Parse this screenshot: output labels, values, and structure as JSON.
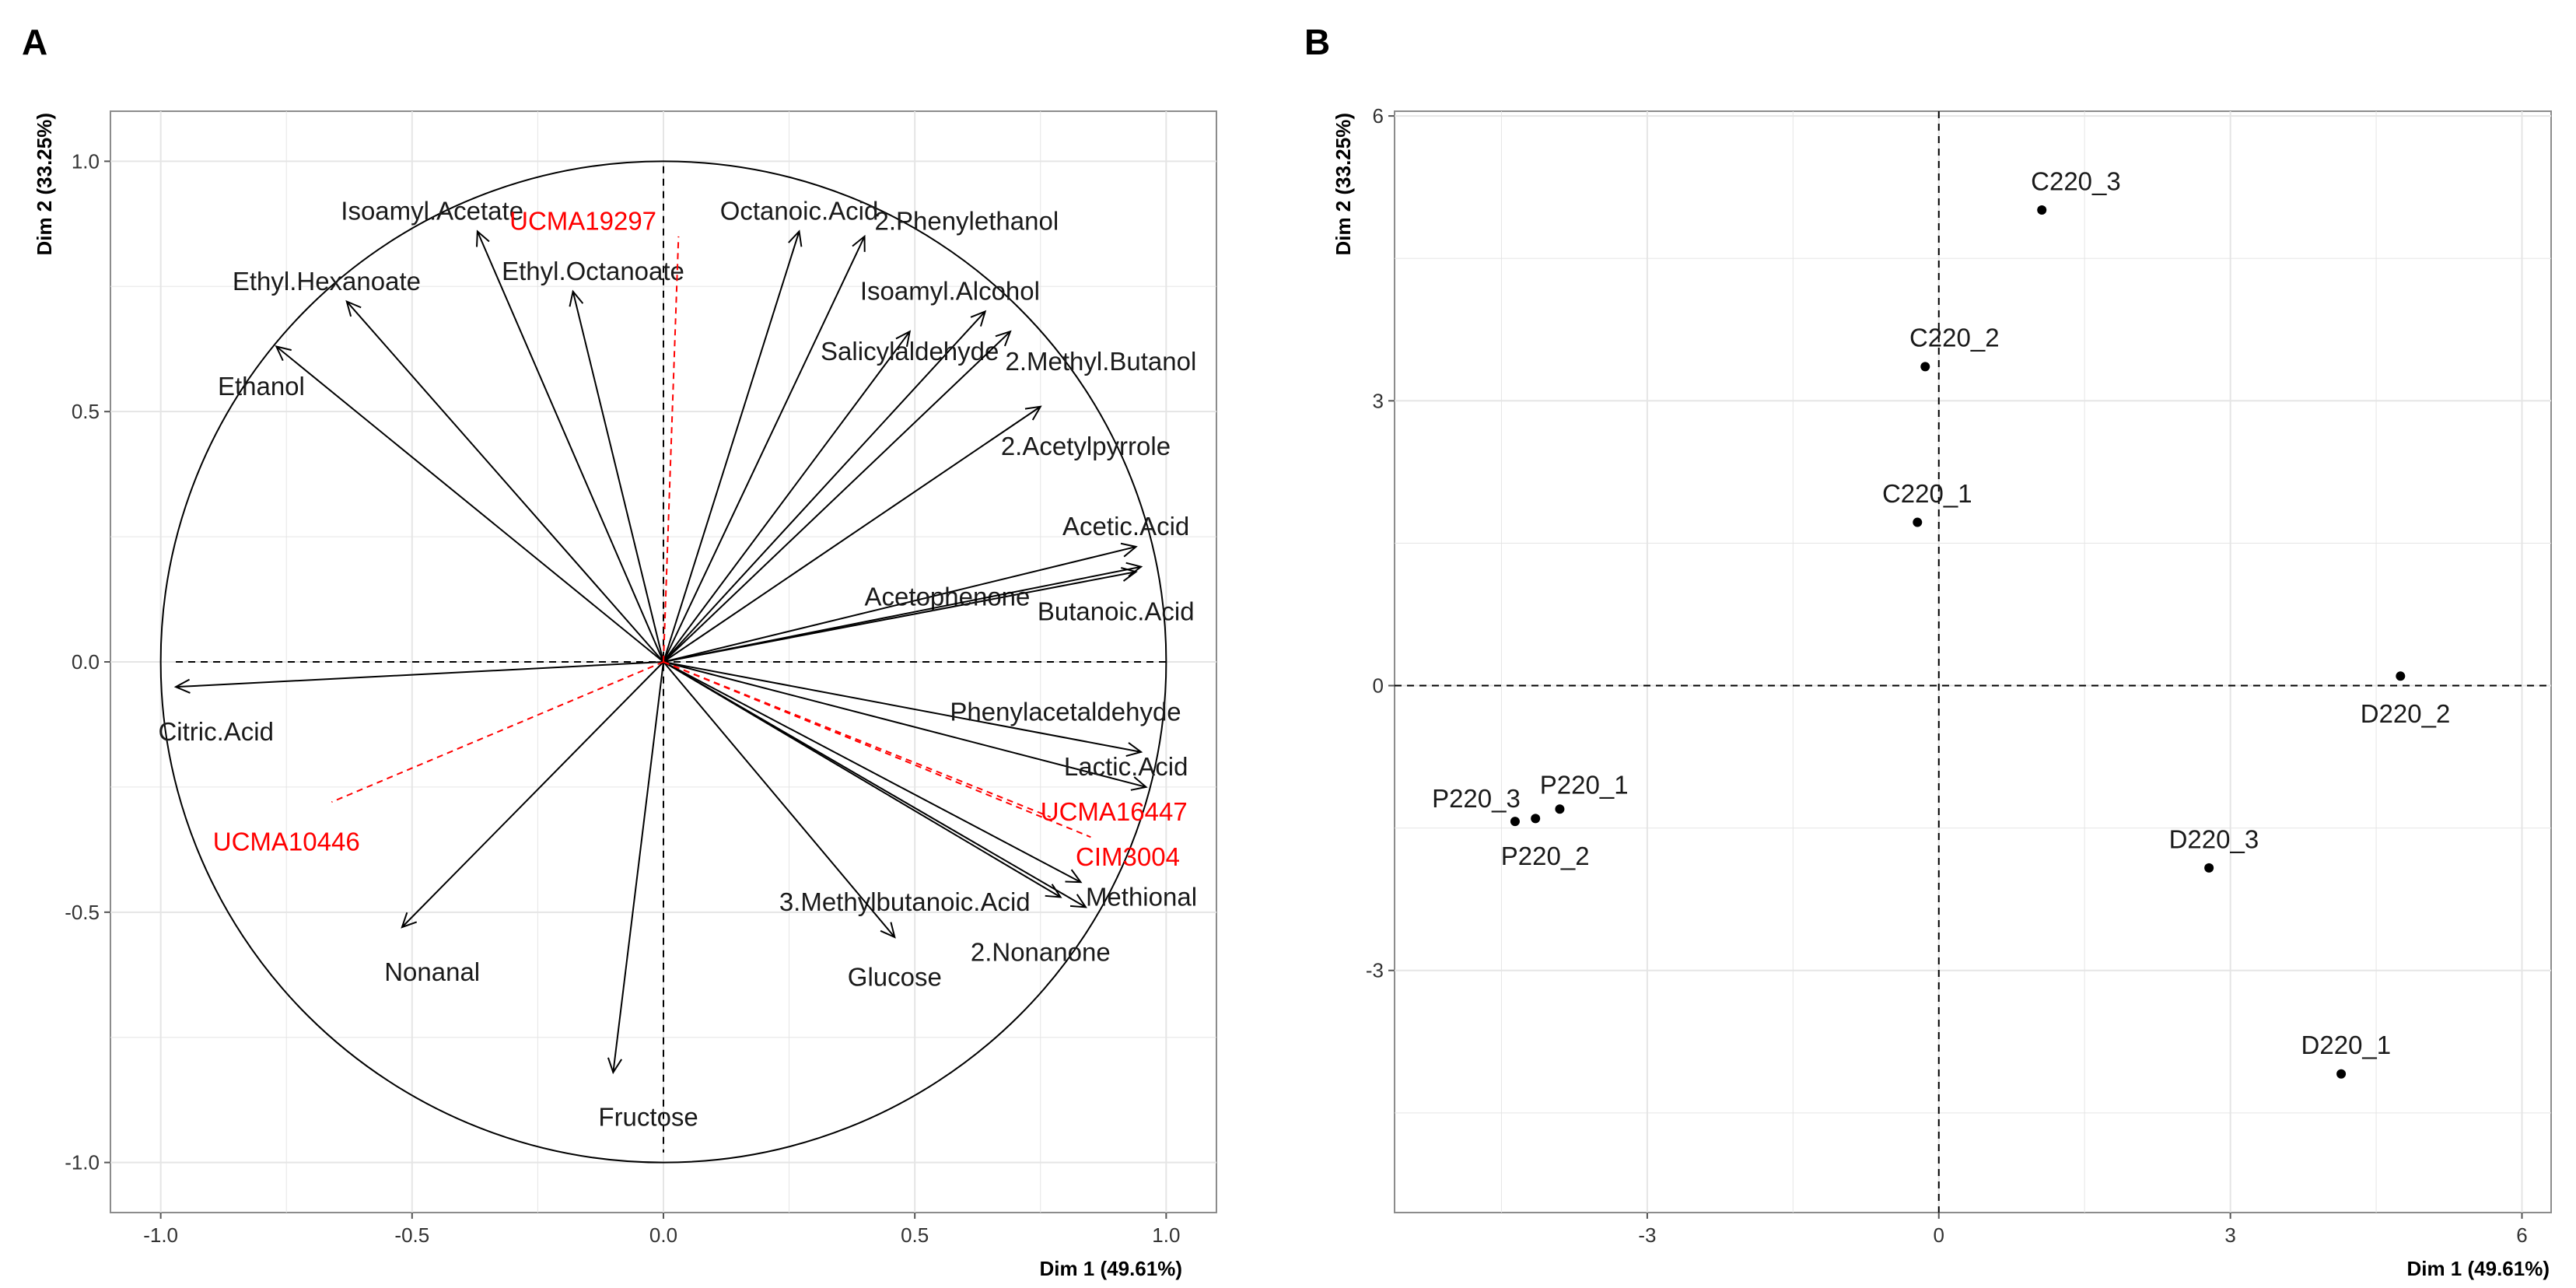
{
  "panels": {
    "a": {
      "letter": "A"
    },
    "b": {
      "letter": "B"
    }
  },
  "colors": {
    "active": "#000000",
    "supplementary": "#ff0000",
    "grid": "#e5e5e5",
    "panel_border": "#8c8c8c"
  },
  "chart_data": [
    {
      "type": "scatter",
      "subtype": "pca-variables-correlation-circle",
      "title": "",
      "xlabel": "Dim 1 (49.61%)",
      "ylabel": "Dim 2 (33.25%)",
      "xlim": [
        -1.1,
        1.1
      ],
      "ylim": [
        -1.1,
        1.1
      ],
      "xticks": [
        -1.0,
        -0.5,
        0.0,
        0.5,
        1.0
      ],
      "yticks": [
        -1.0,
        -0.5,
        0.0,
        0.5,
        1.0
      ],
      "xtick_labels": [
        "-1.0",
        "-0.5",
        "0.0",
        "0.5",
        "1.0"
      ],
      "ytick_labels": [
        "-1.0",
        "-0.5",
        "0.0",
        "0.5",
        "1.0"
      ],
      "grid": true,
      "unit_circle": true,
      "variables": [
        {
          "name": "Isoamyl.Acetate",
          "x": -0.37,
          "y": 0.86,
          "group": "active"
        },
        {
          "name": "Octanoic.Acid",
          "x": 0.27,
          "y": 0.86,
          "group": "active"
        },
        {
          "name": "2.Phenylethanol",
          "x": 0.4,
          "y": 0.85,
          "group": "active"
        },
        {
          "name": "Ethyl.Hexanoate",
          "x": -0.63,
          "y": 0.72,
          "group": "active"
        },
        {
          "name": "Ethyl.Octanoate",
          "x": -0.18,
          "y": 0.74,
          "group": "active"
        },
        {
          "name": "Isoamyl.Alcohol",
          "x": 0.64,
          "y": 0.7,
          "group": "active"
        },
        {
          "name": "Salicylaldehyde",
          "x": 0.49,
          "y": 0.66,
          "group": "active"
        },
        {
          "name": "2.Methyl.Butanol",
          "x": 0.69,
          "y": 0.66,
          "group": "active"
        },
        {
          "name": "Ethanol",
          "x": -0.77,
          "y": 0.63,
          "group": "active"
        },
        {
          "name": "2.Acetylpyrrole",
          "x": 0.75,
          "y": 0.51,
          "group": "active"
        },
        {
          "name": "Acetic.Acid",
          "x": 0.94,
          "y": 0.23,
          "group": "active"
        },
        {
          "name": "Acetophenone",
          "x": 0.94,
          "y": 0.18,
          "group": "active"
        },
        {
          "name": "Butanoic.Acid",
          "x": 0.95,
          "y": 0.19,
          "group": "active"
        },
        {
          "name": "Citric.Acid",
          "x": -0.97,
          "y": -0.05,
          "group": "active"
        },
        {
          "name": "Phenylacetaldehyde",
          "x": 0.95,
          "y": -0.18,
          "group": "active"
        },
        {
          "name": "Lactic.Acid",
          "x": 0.96,
          "y": -0.25,
          "group": "active"
        },
        {
          "name": "3.Methylbutanoic.Acid",
          "x": 0.79,
          "y": -0.47,
          "group": "active"
        },
        {
          "name": "Methional",
          "x": 0.83,
          "y": -0.44,
          "group": "active"
        },
        {
          "name": "2.Nonanone",
          "x": 0.84,
          "y": -0.49,
          "group": "active"
        },
        {
          "name": "Glucose",
          "x": 0.46,
          "y": -0.55,
          "group": "active"
        },
        {
          "name": "Nonanal",
          "x": -0.52,
          "y": -0.53,
          "group": "active"
        },
        {
          "name": "Fructose",
          "x": -0.1,
          "y": -0.82,
          "group": "active"
        },
        {
          "name": "UCMA19297",
          "x": 0.03,
          "y": 0.85,
          "group": "supplementary"
        },
        {
          "name": "UCMA10446",
          "x": -0.66,
          "y": -0.28,
          "group": "supplementary"
        },
        {
          "name": "UCMA16447",
          "x": 0.77,
          "y": -0.31,
          "group": "supplementary"
        },
        {
          "name": "CIM3004",
          "x": 0.85,
          "y": -0.35,
          "group": "supplementary"
        }
      ]
    },
    {
      "type": "scatter",
      "subtype": "pca-individuals",
      "title": "",
      "xlabel": "Dim 1 (49.61%)",
      "ylabel": "Dim 2 (33.25%)",
      "xlim": [
        -5.6,
        6.3
      ],
      "ylim": [
        -5.55,
        6.05
      ],
      "xticks": [
        -3,
        0,
        3,
        6
      ],
      "yticks": [
        -3,
        0,
        3,
        6
      ],
      "xtick_labels": [
        "-3",
        "0",
        "3",
        "6"
      ],
      "ytick_labels": [
        "-3",
        "0",
        "3",
        "6"
      ],
      "grid": true,
      "points": [
        {
          "name": "C220_3",
          "x": 1.06,
          "y": 5.01
        },
        {
          "name": "C220_2",
          "x": -0.14,
          "y": 3.36
        },
        {
          "name": "C220_1",
          "x": -0.22,
          "y": 1.72
        },
        {
          "name": "D220_2",
          "x": 4.75,
          "y": 0.1
        },
        {
          "name": "P220_3",
          "x": -4.36,
          "y": -1.43
        },
        {
          "name": "P220_1",
          "x": -3.9,
          "y": -1.3
        },
        {
          "name": "P220_2",
          "x": -4.15,
          "y": -1.4
        },
        {
          "name": "D220_3",
          "x": 2.78,
          "y": -1.92
        },
        {
          "name": "D220_1",
          "x": 4.14,
          "y": -4.09
        }
      ]
    }
  ]
}
